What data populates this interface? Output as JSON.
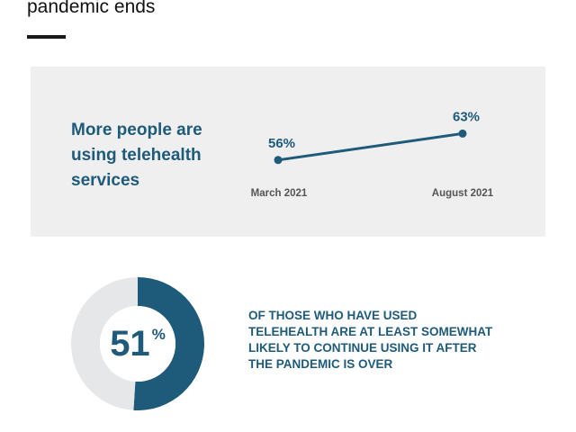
{
  "header": {
    "title": "pandemic ends"
  },
  "panel": {
    "title_lines": [
      "More people are",
      "using telehealth",
      "services"
    ]
  },
  "chart_data": [
    {
      "type": "line",
      "title": "More people are using telehealth services",
      "categories": [
        "March 2021",
        "August 2021"
      ],
      "series": [
        {
          "values": [
            56,
            63
          ]
        }
      ],
      "data_labels": [
        "56%",
        "63%"
      ],
      "unit": "%",
      "grid": false,
      "xlabel": "",
      "ylabel": ""
    },
    {
      "type": "pie",
      "variant": "donut",
      "values": [
        51,
        49
      ],
      "center_value": "51",
      "center_unit": "%",
      "colors": [
        "#1e5a7a",
        "#e6e7e8"
      ],
      "caption_lines": [
        "OF THOSE WHO HAVE USED",
        "TELEHEALTH ARE AT LEAST SOMEWHAT",
        "LIKELY TO CONTINUE USING IT AFTER",
        "THE PANDEMIC IS OVER"
      ]
    }
  ],
  "colors": {
    "accent": "#1e5a7a",
    "panel_bg": "#efefef",
    "axis_label": "#555555",
    "donut_track": "#e6e7e8",
    "heading": "#111111"
  }
}
